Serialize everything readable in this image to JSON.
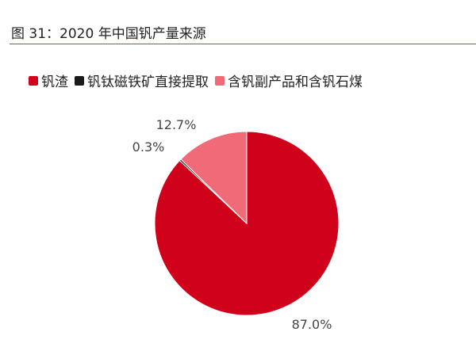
{
  "header": {
    "figure_title": "图 31：2020 年中国钒产量来源"
  },
  "chart_data": {
    "type": "pie",
    "title": "",
    "legend_position": "top",
    "slices": [
      {
        "name": "钒渣",
        "value": 87.0,
        "label": "87.0%",
        "color": "#d0021b"
      },
      {
        "name": "钒钛磁铁矿直接提取",
        "value": 0.3,
        "label": "0.3%",
        "color": "#1a1a1a"
      },
      {
        "name": "含钒副产品和含钒石煤",
        "value": 12.7,
        "label": "12.7%",
        "color": "#f06a78"
      }
    ]
  }
}
